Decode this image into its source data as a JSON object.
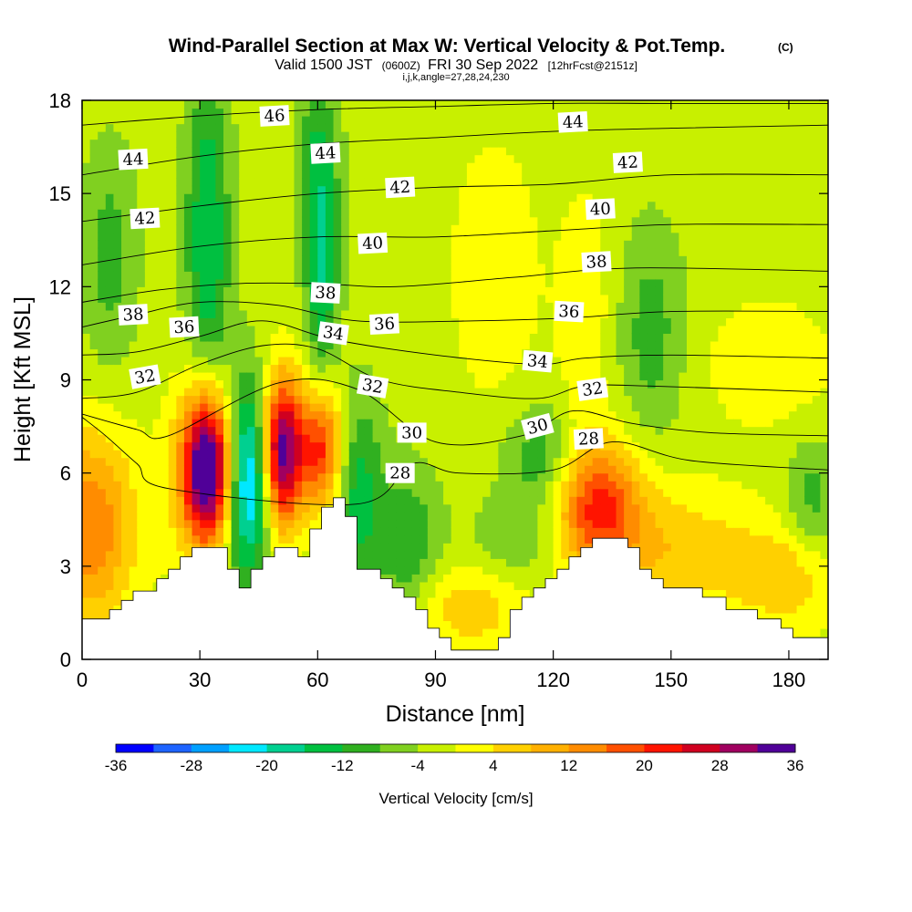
{
  "title": {
    "main": "Wind-Parallel Section at Max W: Vertical Velocity & Pot.Temp.",
    "main_suffix": "(C)",
    "valid_prefix": "Valid 1500 JST",
    "valid_z": "(0600Z)",
    "valid_date": "FRI 30 Sep 2022",
    "forecast": "[12hrFcst@2151z]",
    "params": "i,j,k,angle=27,28,24,230"
  },
  "chart_data": {
    "type": "heatmap",
    "xlabel": "Distance [nm]",
    "ylabel": "Height [Kft MSL]",
    "xlim": [
      0,
      190
    ],
    "ylim": [
      0,
      18
    ],
    "x_ticks": [
      0,
      30,
      60,
      90,
      120,
      150,
      180
    ],
    "y_ticks": [
      0,
      3,
      6,
      9,
      12,
      15,
      18
    ],
    "colorbar": {
      "label": "Vertical Velocity [cm/s]",
      "range": [
        -36,
        36
      ],
      "tick_values": [
        -36,
        -28,
        -20,
        -12,
        -4,
        4,
        12,
        20,
        28,
        36
      ],
      "colors": [
        "#0000ff",
        "#1e64ff",
        "#00a0ff",
        "#00e8ff",
        "#00d090",
        "#00c040",
        "#30b020",
        "#80d020",
        "#c8f000",
        "#ffff00",
        "#ffd000",
        "#ffb000",
        "#ff8c00",
        "#ff5000",
        "#ff1400",
        "#d00020",
        "#a00060",
        "#500098"
      ]
    },
    "vertical_velocity_field": {
      "background_value": -2,
      "cells": [
        {
          "x": 32,
          "y": 6.2,
          "sx": 4.5,
          "sy": 1.7,
          "v": 40
        },
        {
          "x": 30,
          "y": 6.0,
          "sx": 6.5,
          "sy": 2.4,
          "v": 6
        },
        {
          "x": 51,
          "y": 6.7,
          "sx": 3.6,
          "sy": 1.7,
          "v": 36
        },
        {
          "x": 42,
          "y": 5.8,
          "sx": 4.0,
          "sy": 2.2,
          "v": -26
        },
        {
          "x": 61,
          "y": 6.8,
          "sx": 4.0,
          "sy": 1.4,
          "v": 24
        },
        {
          "x": 70,
          "y": 5.5,
          "sx": 4.5,
          "sy": 2.2,
          "v": -12
        },
        {
          "x": 2,
          "y": 4.3,
          "sx": 8,
          "sy": 2.2,
          "v": 18
        },
        {
          "x": 131,
          "y": 5.0,
          "sx": 8,
          "sy": 1.5,
          "v": 22
        },
        {
          "x": 150,
          "y": 3.5,
          "sx": 15,
          "sy": 1.5,
          "v": 9
        },
        {
          "x": 180,
          "y": 2.7,
          "sx": 10,
          "sy": 1.2,
          "v": 9
        },
        {
          "x": 98,
          "y": 1.7,
          "sx": 12,
          "sy": 1.0,
          "v": 9
        },
        {
          "x": 83,
          "y": 3.6,
          "sx": 6,
          "sy": 1.8,
          "v": -10
        },
        {
          "x": 118,
          "y": 6.5,
          "sx": 7,
          "sy": 1.2,
          "v": -10
        },
        {
          "x": 112,
          "y": 3.8,
          "sx": 9,
          "sy": 1.2,
          "v": -6
        },
        {
          "x": 186,
          "y": 5.0,
          "sx": 5,
          "sy": 1.5,
          "v": -8
        },
        {
          "x": 32,
          "y": 13.5,
          "sx": 4,
          "sy": 4.0,
          "v": -14
        },
        {
          "x": 61,
          "y": 12.5,
          "sx": 3,
          "sy": 2.5,
          "v": -14
        },
        {
          "x": 7,
          "y": 13.0,
          "sx": 5,
          "sy": 2.5,
          "v": -8
        },
        {
          "x": 60,
          "y": 16.5,
          "sx": 4,
          "sy": 2.0,
          "v": -8
        },
        {
          "x": 145,
          "y": 10.5,
          "sx": 6,
          "sy": 2.5,
          "v": -8
        },
        {
          "x": 105,
          "y": 12.5,
          "sx": 8,
          "sy": 3.0,
          "v": 5
        },
        {
          "x": 128,
          "y": 11.0,
          "sx": 5,
          "sy": 3.0,
          "v": 5
        },
        {
          "x": 175,
          "y": 9.5,
          "sx": 12,
          "sy": 1.5,
          "v": 5
        }
      ]
    },
    "terrain_top": [
      [
        0,
        1.3
      ],
      [
        7,
        1.3
      ],
      [
        7,
        1.6
      ],
      [
        10,
        1.6
      ],
      [
        10,
        1.9
      ],
      [
        13,
        1.9
      ],
      [
        13,
        2.2
      ],
      [
        19,
        2.2
      ],
      [
        19,
        2.6
      ],
      [
        22,
        2.6
      ],
      [
        22,
        2.9
      ],
      [
        25,
        2.9
      ],
      [
        25,
        3.3
      ],
      [
        28,
        3.3
      ],
      [
        28,
        3.6
      ],
      [
        37,
        3.6
      ],
      [
        37,
        2.9
      ],
      [
        40,
        2.9
      ],
      [
        40,
        2.3
      ],
      [
        43,
        2.3
      ],
      [
        43,
        2.9
      ],
      [
        46,
        2.9
      ],
      [
        46,
        3.3
      ],
      [
        49,
        3.3
      ],
      [
        49,
        3.6
      ],
      [
        55,
        3.6
      ],
      [
        55,
        3.3
      ],
      [
        58,
        3.3
      ],
      [
        58,
        4.2
      ],
      [
        61,
        4.2
      ],
      [
        61,
        4.9
      ],
      [
        64,
        4.9
      ],
      [
        64,
        5.2
      ],
      [
        67,
        5.2
      ],
      [
        67,
        4.6
      ],
      [
        70,
        4.6
      ],
      [
        70,
        2.9
      ],
      [
        76,
        2.9
      ],
      [
        76,
        2.6
      ],
      [
        79,
        2.6
      ],
      [
        79,
        2.3
      ],
      [
        82,
        2.3
      ],
      [
        82,
        2.0
      ],
      [
        85,
        2.0
      ],
      [
        85,
        1.6
      ],
      [
        88,
        1.6
      ],
      [
        88,
        1.0
      ],
      [
        91,
        1.0
      ],
      [
        91,
        0.7
      ],
      [
        94,
        0.7
      ],
      [
        94,
        0.3
      ],
      [
        106,
        0.3
      ],
      [
        106,
        0.7
      ],
      [
        109,
        0.7
      ],
      [
        109,
        1.6
      ],
      [
        112,
        1.6
      ],
      [
        112,
        2.0
      ],
      [
        115,
        2.0
      ],
      [
        115,
        2.3
      ],
      [
        118,
        2.3
      ],
      [
        118,
        2.6
      ],
      [
        121,
        2.6
      ],
      [
        121,
        2.9
      ],
      [
        124,
        2.9
      ],
      [
        124,
        3.3
      ],
      [
        127,
        3.3
      ],
      [
        127,
        3.6
      ],
      [
        130,
        3.6
      ],
      [
        130,
        3.9
      ],
      [
        139,
        3.9
      ],
      [
        139,
        3.6
      ],
      [
        142,
        3.6
      ],
      [
        142,
        2.9
      ],
      [
        145,
        2.9
      ],
      [
        145,
        2.6
      ],
      [
        148,
        2.6
      ],
      [
        148,
        2.3
      ],
      [
        158,
        2.3
      ],
      [
        158,
        2.0
      ],
      [
        164,
        2.0
      ],
      [
        164,
        1.6
      ],
      [
        172,
        1.6
      ],
      [
        172,
        1.3
      ],
      [
        178,
        1.3
      ],
      [
        178,
        1.0
      ],
      [
        181,
        1.0
      ],
      [
        181,
        0.7
      ],
      [
        190,
        0.7
      ]
    ],
    "theta_isolines": [
      {
        "value": "28",
        "points": [
          [
            0,
            7.8
          ],
          [
            6,
            7.2
          ],
          [
            14,
            6.3
          ],
          [
            22,
            5.5
          ],
          [
            70,
            5.0
          ],
          [
            84,
            6.3
          ],
          [
            96,
            6.0
          ],
          [
            120,
            6.1
          ],
          [
            135,
            7.0
          ],
          [
            155,
            6.4
          ],
          [
            190,
            6.1
          ]
        ]
      },
      {
        "value": "30",
        "points": [
          [
            0,
            7.9
          ],
          [
            14,
            7.4
          ],
          [
            22,
            7.2
          ],
          [
            50,
            8.9
          ],
          [
            70,
            8.7
          ],
          [
            90,
            7.0
          ],
          [
            112,
            7.2
          ],
          [
            125,
            8.0
          ],
          [
            140,
            7.6
          ],
          [
            160,
            7.3
          ],
          [
            190,
            7.2
          ]
        ]
      },
      {
        "value": "32",
        "points": [
          [
            0,
            8.4
          ],
          [
            14,
            8.6
          ],
          [
            30,
            9.5
          ],
          [
            46,
            10.1
          ],
          [
            60,
            10.0
          ],
          [
            76,
            9.0
          ],
          [
            96,
            8.6
          ],
          [
            116,
            8.4
          ],
          [
            128,
            8.8
          ],
          [
            145,
            8.8
          ],
          [
            190,
            8.6
          ]
        ]
      },
      {
        "value": "34",
        "points": [
          [
            0,
            9.8
          ],
          [
            14,
            9.9
          ],
          [
            30,
            10.4
          ],
          [
            46,
            10.9
          ],
          [
            64,
            10.3
          ],
          [
            90,
            9.8
          ],
          [
            116,
            9.5
          ],
          [
            128,
            9.7
          ],
          [
            150,
            9.8
          ],
          [
            190,
            9.7
          ]
        ]
      },
      {
        "value": "36",
        "points": [
          [
            0,
            10.7
          ],
          [
            14,
            11.1
          ],
          [
            30,
            11.5
          ],
          [
            50,
            11.4
          ],
          [
            70,
            10.9
          ],
          [
            100,
            10.9
          ],
          [
            125,
            11.0
          ],
          [
            150,
            11.2
          ],
          [
            190,
            11.2
          ]
        ]
      },
      {
        "value": "38",
        "points": [
          [
            0,
            11.5
          ],
          [
            20,
            11.9
          ],
          [
            40,
            12.1
          ],
          [
            60,
            12.1
          ],
          [
            80,
            12.0
          ],
          [
            110,
            12.3
          ],
          [
            140,
            12.6
          ],
          [
            190,
            12.5
          ]
        ]
      },
      {
        "value": "40",
        "points": [
          [
            0,
            12.7
          ],
          [
            30,
            13.3
          ],
          [
            60,
            13.6
          ],
          [
            90,
            13.6
          ],
          [
            120,
            13.8
          ],
          [
            150,
            14.0
          ],
          [
            190,
            14.0
          ]
        ]
      },
      {
        "value": "42",
        "points": [
          [
            0,
            14.1
          ],
          [
            30,
            14.6
          ],
          [
            60,
            15.0
          ],
          [
            90,
            15.2
          ],
          [
            120,
            15.3
          ],
          [
            150,
            15.6
          ],
          [
            190,
            15.6
          ]
        ]
      },
      {
        "value": "44",
        "points": [
          [
            0,
            15.6
          ],
          [
            30,
            16.2
          ],
          [
            60,
            16.6
          ],
          [
            90,
            16.8
          ],
          [
            120,
            17.0
          ],
          [
            150,
            17.1
          ],
          [
            190,
            17.2
          ]
        ]
      },
      {
        "value": "46",
        "points": [
          [
            0,
            17.2
          ],
          [
            30,
            17.5
          ],
          [
            60,
            17.7
          ],
          [
            90,
            17.8
          ],
          [
            120,
            17.9
          ],
          [
            150,
            17.9
          ],
          [
            190,
            17.9
          ]
        ]
      }
    ],
    "contour_labels": [
      {
        "text": "46",
        "x": 49,
        "y": 17.5,
        "angle": -3
      },
      {
        "text": "44",
        "x": 13,
        "y": 16.1,
        "angle": -3
      },
      {
        "text": "44",
        "x": 62,
        "y": 16.3,
        "angle": -3
      },
      {
        "text": "44",
        "x": 125,
        "y": 17.3,
        "angle": -3
      },
      {
        "text": "42",
        "x": 81,
        "y": 15.2,
        "angle": -3
      },
      {
        "text": "42",
        "x": 139,
        "y": 16.0,
        "angle": -3
      },
      {
        "text": "42",
        "x": 16,
        "y": 14.2,
        "angle": -3
      },
      {
        "text": "40",
        "x": 74,
        "y": 13.4,
        "angle": -3
      },
      {
        "text": "40",
        "x": 132,
        "y": 14.5,
        "angle": -3
      },
      {
        "text": "38",
        "x": 62,
        "y": 11.8,
        "angle": 3
      },
      {
        "text": "38",
        "x": 131,
        "y": 12.8,
        "angle": -3
      },
      {
        "text": "38",
        "x": 13,
        "y": 11.1,
        "angle": -3
      },
      {
        "text": "36",
        "x": 26,
        "y": 10.7,
        "angle": -3
      },
      {
        "text": "36",
        "x": 124,
        "y": 11.2,
        "angle": 3
      },
      {
        "text": "36",
        "x": 77,
        "y": 10.8,
        "angle": -3
      },
      {
        "text": "34",
        "x": 64,
        "y": 10.5,
        "angle": 8
      },
      {
        "text": "34",
        "x": 116,
        "y": 9.6,
        "angle": 5
      },
      {
        "text": "32",
        "x": 16,
        "y": 9.1,
        "angle": -10
      },
      {
        "text": "32",
        "x": 74,
        "y": 8.8,
        "angle": 10
      },
      {
        "text": "32",
        "x": 130,
        "y": 8.7,
        "angle": -8
      },
      {
        "text": "30",
        "x": 84,
        "y": 7.3,
        "angle": 0
      },
      {
        "text": "30",
        "x": 116,
        "y": 7.5,
        "angle": -15
      },
      {
        "text": "28",
        "x": 81,
        "y": 6.0,
        "angle": 0
      },
      {
        "text": "28",
        "x": 129,
        "y": 7.1,
        "angle": -3
      }
    ]
  }
}
